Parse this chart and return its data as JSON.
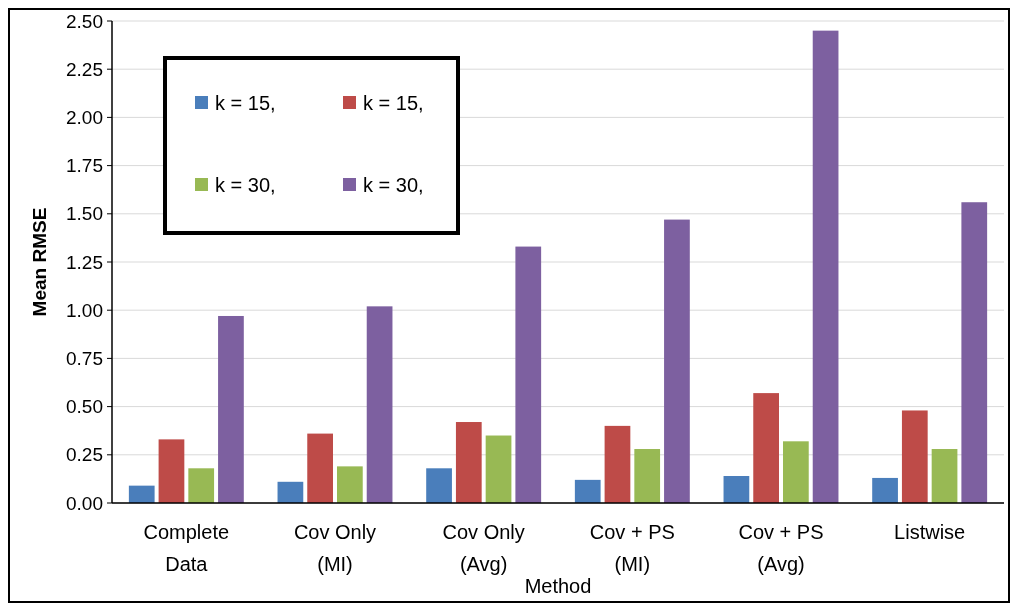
{
  "chart_data": {
    "type": "bar",
    "xlabel": "Method",
    "ylabel": "Mean RMSE",
    "categories": [
      "Complete Data",
      "Cov Only (MI)",
      "Cov Only (Avg)",
      "Cov + PS (MI)",
      "Cov + PS (Avg)",
      "Listwise"
    ],
    "series": [
      {
        "name": "k = 15,",
        "color": "#4a7ebb",
        "values": [
          0.09,
          0.11,
          0.18,
          0.12,
          0.14,
          0.13
        ]
      },
      {
        "name": "k = 15,",
        "color": "#be4b48",
        "values": [
          0.33,
          0.36,
          0.42,
          0.4,
          0.57,
          0.48
        ]
      },
      {
        "name": "k = 30,",
        "color": "#98b954",
        "values": [
          0.18,
          0.19,
          0.35,
          0.28,
          0.32,
          0.28
        ]
      },
      {
        "name": "k = 30,",
        "color": "#7d60a0",
        "values": [
          0.97,
          1.02,
          1.33,
          1.47,
          2.45,
          1.56
        ]
      }
    ],
    "ylim": [
      0,
      2.5
    ],
    "yticks": [
      {
        "value": 0,
        "label": "0.00"
      },
      {
        "value": 0.25,
        "label": "0.25"
      },
      {
        "value": 0.5,
        "label": "0.50"
      },
      {
        "value": 0.75,
        "label": "0.75"
      },
      {
        "value": 1,
        "label": "1.00"
      },
      {
        "value": 1.25,
        "label": "1.25"
      },
      {
        "value": 1.5,
        "label": "1.50"
      },
      {
        "value": 1.75,
        "label": "1.75"
      },
      {
        "value": 2,
        "label": "2.00"
      },
      {
        "value": 2.25,
        "label": "2.25"
      },
      {
        "value": 2.5,
        "label": "2.50"
      }
    ],
    "grid": "y",
    "legend": "top left"
  }
}
